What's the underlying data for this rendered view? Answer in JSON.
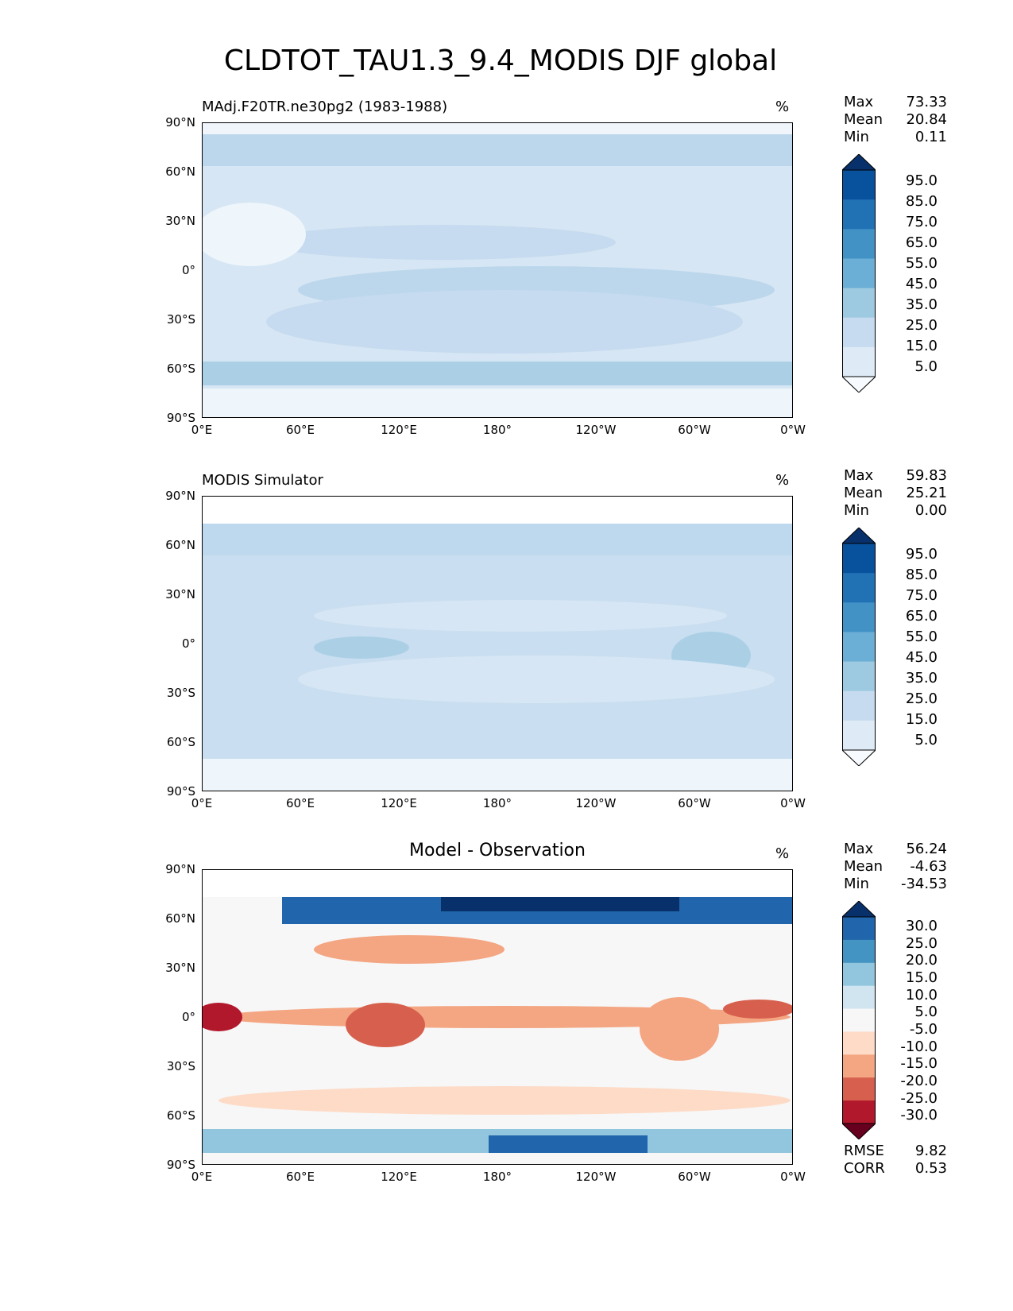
{
  "title": "CLDTOT_TAU1.3_9.4_MODIS DJF global",
  "panels": [
    {
      "title": "MAdj.F20TR.ne30pg2 (1983-1988)",
      "units": "%",
      "stats": {
        "max_label": "Max",
        "max": "73.33",
        "mean_label": "Mean",
        "mean": "20.84",
        "min_label": "Min",
        "min": "0.11"
      },
      "colorbar": {
        "levels": [
          "95.0",
          "85.0",
          "75.0",
          "65.0",
          "55.0",
          "45.0",
          "35.0",
          "25.0",
          "15.0",
          "5.0"
        ],
        "colors": [
          "#08306b",
          "#08519c",
          "#2171b5",
          "#4292c6",
          "#6baed6",
          "#9ecae1",
          "#c6dbef",
          "#deebf7",
          "#f7fbff"
        ]
      }
    },
    {
      "title": "MODIS Simulator",
      "units": "%",
      "stats": {
        "max_label": "Max",
        "max": "59.83",
        "mean_label": "Mean",
        "mean": "25.21",
        "min_label": "Min",
        "min": "0.00"
      },
      "colorbar": {
        "levels": [
          "95.0",
          "85.0",
          "75.0",
          "65.0",
          "55.0",
          "45.0",
          "35.0",
          "25.0",
          "15.0",
          "5.0"
        ],
        "colors": [
          "#08306b",
          "#08519c",
          "#2171b5",
          "#4292c6",
          "#6baed6",
          "#9ecae1",
          "#c6dbef",
          "#deebf7",
          "#f7fbff"
        ]
      }
    },
    {
      "title": "Model - Observation",
      "units": "%",
      "stats": {
        "max_label": "Max",
        "max": "56.24",
        "mean_label": "Mean",
        "mean": "-4.63",
        "min_label": "Min",
        "min": "-34.53"
      },
      "colorbar": {
        "levels": [
          "30.0",
          "25.0",
          "20.0",
          "15.0",
          "10.0",
          "5.0",
          "-5.0",
          "-10.0",
          "-15.0",
          "-20.0",
          "-25.0",
          "-30.0"
        ],
        "colors": [
          "#08306b",
          "#2166ac",
          "#4393c3",
          "#92c5de",
          "#d1e5f0",
          "#f7f7f7",
          "#fddbc7",
          "#f4a582",
          "#d6604d",
          "#b2182b",
          "#67001f"
        ]
      },
      "metrics": {
        "rmse_label": "RMSE",
        "rmse": "9.82",
        "corr_label": "CORR",
        "corr": "0.53"
      }
    }
  ],
  "axes": {
    "lat_ticks": [
      "90°N",
      "60°N",
      "30°N",
      "0°",
      "30°S",
      "60°S",
      "90°S"
    ],
    "lon_ticks": [
      "0°E",
      "60°E",
      "120°E",
      "180°",
      "120°W",
      "60°W",
      "0°W"
    ]
  }
}
